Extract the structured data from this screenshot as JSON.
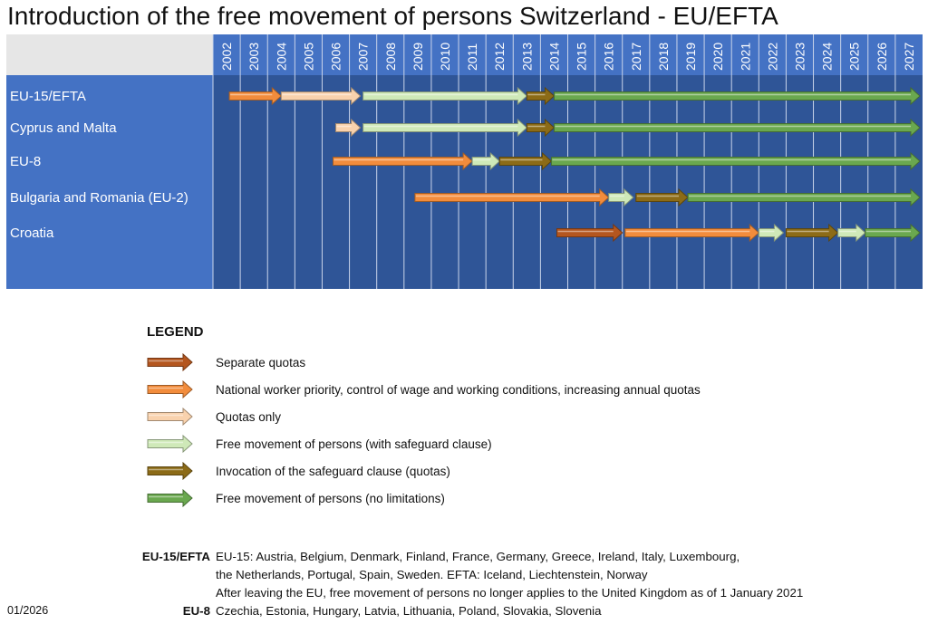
{
  "title": "Introduction of the free movement of persons Switzerland - EU/EFTA",
  "colors": {
    "header": "#4472c4",
    "body": "#2f5597",
    "label_column": "#4472c4",
    "separate_quotas": "#b4561f",
    "national_priority": "#f28c3c",
    "quotas_only": "#f9d2ad",
    "free_safeguard": "#cfe9b8",
    "invocation": "#8c6b17",
    "free": "#6aa84f"
  },
  "chart_data": {
    "type": "timeline",
    "title": "Introduction of the free movement of persons Switzerland - EU/EFTA",
    "x_tick_labels": [
      "2002",
      "2003",
      "2004",
      "2005",
      "2006",
      "2007",
      "2008",
      "2009",
      "2010",
      "2011",
      "2012",
      "2013",
      "2014",
      "2015",
      "2016",
      "2017",
      "2018",
      "2019",
      "2020",
      "2021",
      "2022",
      "2023",
      "2024",
      "2025",
      "2026",
      "2027"
    ],
    "xlim": [
      2002,
      2028
    ],
    "grid": true,
    "rows": [
      {
        "label": "EU-15/EFTA",
        "segments": [
          {
            "start": 2002.6,
            "end": 2004.5,
            "regime": "national_priority"
          },
          {
            "start": 2004.5,
            "end": 2007.4,
            "regime": "quotas_only"
          },
          {
            "start": 2007.5,
            "end": 2013.5,
            "regime": "free_safeguard"
          },
          {
            "start": 2013.5,
            "end": 2014.5,
            "regime": "invocation"
          },
          {
            "start": 2014.5,
            "end": 2027.9,
            "regime": "free"
          }
        ]
      },
      {
        "label": "Cyprus and Malta",
        "segments": [
          {
            "start": 2006.5,
            "end": 2007.4,
            "regime": "quotas_only"
          },
          {
            "start": 2007.5,
            "end": 2013.5,
            "regime": "free_safeguard"
          },
          {
            "start": 2013.5,
            "end": 2014.5,
            "regime": "invocation"
          },
          {
            "start": 2014.5,
            "end": 2027.9,
            "regime": "free"
          }
        ]
      },
      {
        "label": "EU-8",
        "segments": [
          {
            "start": 2006.4,
            "end": 2011.5,
            "regime": "national_priority"
          },
          {
            "start": 2011.5,
            "end": 2012.5,
            "regime": "free_safeguard"
          },
          {
            "start": 2012.5,
            "end": 2014.4,
            "regime": "invocation"
          },
          {
            "start": 2014.4,
            "end": 2027.9,
            "regime": "free"
          }
        ]
      },
      {
        "label": "Bulgaria and Romania (EU-2)",
        "segments": [
          {
            "start": 2009.4,
            "end": 2016.5,
            "regime": "national_priority"
          },
          {
            "start": 2016.5,
            "end": 2017.4,
            "regime": "free_safeguard"
          },
          {
            "start": 2017.5,
            "end": 2019.4,
            "regime": "invocation"
          },
          {
            "start": 2019.4,
            "end": 2027.9,
            "regime": "free"
          }
        ]
      },
      {
        "label": "Croatia",
        "segments": [
          {
            "start": 2014.6,
            "end": 2017.0,
            "regime": "separate_quotas"
          },
          {
            "start": 2017.1,
            "end": 2022.0,
            "regime": "national_priority"
          },
          {
            "start": 2022.0,
            "end": 2022.9,
            "regime": "free_safeguard"
          },
          {
            "start": 2023.0,
            "end": 2024.9,
            "regime": "invocation"
          },
          {
            "start": 2024.9,
            "end": 2025.9,
            "regime": "free_safeguard"
          },
          {
            "start": 2025.9,
            "end": 2027.9,
            "regime": "free"
          }
        ]
      }
    ]
  },
  "legend": {
    "title": "LEGEND",
    "items": [
      {
        "regime": "separate_quotas",
        "label": "Separate quotas"
      },
      {
        "regime": "national_priority",
        "label": "National worker priority, control of wage and working conditions, increasing annual quotas"
      },
      {
        "regime": "quotas_only",
        "label": "Quotas only"
      },
      {
        "regime": "free_safeguard",
        "label": "Free movement of persons (with safeguard clause)"
      },
      {
        "regime": "invocation",
        "label": "Invocation of the safeguard clause (quotas)"
      },
      {
        "regime": "free",
        "label": "Free movement of persons (no limitations)"
      }
    ]
  },
  "footnotes": {
    "eu15_label": "EU-15/EFTA",
    "eu15_lines": [
      "EU-15: Austria, Belgium, Denmark, Finland, France, Germany, Greece, Ireland, Italy, Luxembourg,",
      "the Netherlands, Portugal, Spain, Sweden. EFTA: Iceland, Liechtenstein, Norway",
      "After leaving the EU, free movement of persons no longer applies to the United Kingdom as of 1 January 2021"
    ],
    "eu8_label": "EU-8",
    "eu8_text": "Czechia, Estonia, Hungary, Latvia, Lithuania, Poland, Slovakia, Slovenia"
  },
  "date": "01/2026"
}
